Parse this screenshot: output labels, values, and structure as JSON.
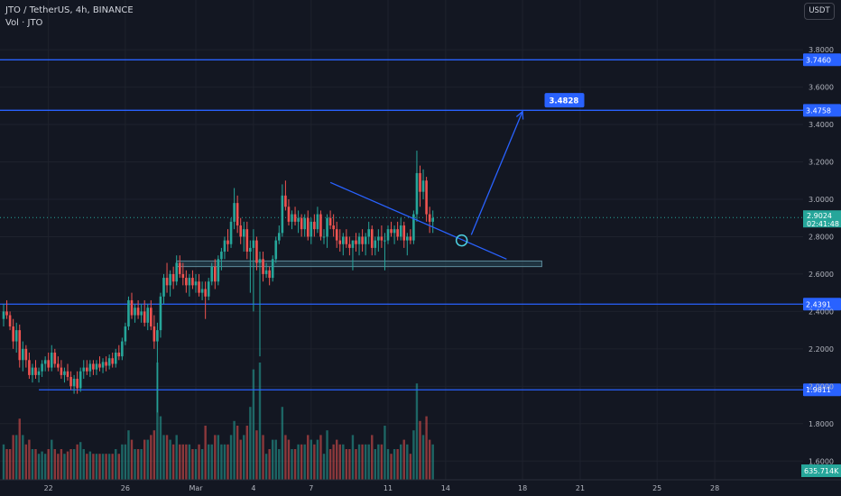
{
  "legend": {
    "symbol_line": "JTO / TetherUS, 4h, BINANCE",
    "volume_line": "Vol · JTO"
  },
  "currency_button": "USDT",
  "colors": {
    "background": "#131722",
    "up": "#26a69a",
    "down": "#ef5350",
    "level_line": "#2962ff",
    "trend_line": "#2962ff",
    "zone": "#2a4b5a",
    "last_price": "#26a69a",
    "grid": "#1e222d"
  },
  "chart_data": {
    "type": "candlestick",
    "title": "JTO / TetherUS, 4h, BINANCE",
    "y_axis": {
      "min": 1.5,
      "max": 3.95,
      "ticks": [
        "3.8000",
        "3.6000",
        "3.4000",
        "3.2000",
        "3.0000",
        "2.8000",
        "2.6000",
        "2.4000",
        "2.2000",
        "2.0000",
        "1.8000",
        "1.6000"
      ],
      "tick_values": [
        3.8,
        3.6,
        3.4,
        3.2,
        3.0,
        2.8,
        2.6,
        2.4,
        2.2,
        2.0,
        1.8,
        1.6
      ]
    },
    "x_axis": {
      "labels": [
        "22",
        "26",
        "Mar",
        "4",
        "7",
        "11",
        "14",
        "18",
        "21",
        "25",
        "28"
      ],
      "label_bar_index": [
        14,
        38,
        60,
        78,
        96,
        120,
        138,
        162,
        180,
        204,
        222
      ],
      "total_slots": 256
    },
    "price_levels": [
      {
        "value": 3.746,
        "label": "3.7460"
      },
      {
        "value": 3.4758,
        "label": "3.4758"
      },
      {
        "value": 2.4391,
        "label": "2.4391"
      },
      {
        "value": 1.9811,
        "label": "1.9811"
      }
    ],
    "last_price": {
      "value": 2.9024,
      "label": "2.9024",
      "countdown": "02:41:48"
    },
    "volume_readout": "635.714K",
    "support_zone": {
      "from_bar": 54,
      "to_bar": 168,
      "low": 2.64,
      "high": 2.67
    },
    "trend_line": {
      "from_bar": 102,
      "from_value": 3.09,
      "to_bar": 157,
      "to_value": 2.68
    },
    "projection_arrow": {
      "from_bar": 146,
      "from_value": 2.81,
      "to_bar": 162,
      "to_value": 3.47
    },
    "target_callout": {
      "label": "3.4828",
      "bar": 170,
      "value": 3.53
    },
    "breakout_marker": {
      "bar": 143,
      "value": 2.78
    },
    "candles_ohlc": [
      [
        2.36,
        2.44,
        2.32,
        2.4
      ],
      [
        2.4,
        2.46,
        2.36,
        2.38
      ],
      [
        2.38,
        2.4,
        2.3,
        2.32
      ],
      [
        2.32,
        2.36,
        2.2,
        2.24
      ],
      [
        2.24,
        2.34,
        2.18,
        2.3
      ],
      [
        2.3,
        2.33,
        2.1,
        2.14
      ],
      [
        2.14,
        2.24,
        2.08,
        2.2
      ],
      [
        2.2,
        2.22,
        2.1,
        2.14
      ],
      [
        2.14,
        2.18,
        2.04,
        2.06
      ],
      [
        2.06,
        2.12,
        2.02,
        2.1
      ],
      [
        2.1,
        2.14,
        2.04,
        2.06
      ],
      [
        2.06,
        2.1,
        2.02,
        2.08
      ],
      [
        2.08,
        2.14,
        2.05,
        2.12
      ],
      [
        2.12,
        2.16,
        2.08,
        2.14
      ],
      [
        2.14,
        2.18,
        2.08,
        2.1
      ],
      [
        2.1,
        2.22,
        2.08,
        2.18
      ],
      [
        2.18,
        2.2,
        2.1,
        2.12
      ],
      [
        2.12,
        2.16,
        2.08,
        2.1
      ],
      [
        2.1,
        2.14,
        2.04,
        2.06
      ],
      [
        2.06,
        2.1,
        2.02,
        2.08
      ],
      [
        2.08,
        2.12,
        2.03,
        2.05
      ],
      [
        2.05,
        2.08,
        1.98,
        2.0
      ],
      [
        2.0,
        2.06,
        1.96,
        2.04
      ],
      [
        2.04,
        2.08,
        1.96,
        1.99
      ],
      [
        1.99,
        2.1,
        1.97,
        2.08
      ],
      [
        2.08,
        2.14,
        2.04,
        2.1
      ],
      [
        2.1,
        2.14,
        2.06,
        2.08
      ],
      [
        2.08,
        2.14,
        2.05,
        2.12
      ],
      [
        2.12,
        2.14,
        2.06,
        2.09
      ],
      [
        2.09,
        2.14,
        2.06,
        2.12
      ],
      [
        2.12,
        2.16,
        2.08,
        2.1
      ],
      [
        2.1,
        2.15,
        2.07,
        2.13
      ],
      [
        2.13,
        2.16,
        2.08,
        2.11
      ],
      [
        2.11,
        2.17,
        2.09,
        2.15
      ],
      [
        2.15,
        2.18,
        2.1,
        2.12
      ],
      [
        2.12,
        2.2,
        2.1,
        2.18
      ],
      [
        2.18,
        2.22,
        2.14,
        2.16
      ],
      [
        2.16,
        2.26,
        2.14,
        2.24
      ],
      [
        2.24,
        2.34,
        2.22,
        2.32
      ],
      [
        2.32,
        2.48,
        2.3,
        2.46
      ],
      [
        2.46,
        2.5,
        2.36,
        2.38
      ],
      [
        2.38,
        2.44,
        2.34,
        2.42
      ],
      [
        2.42,
        2.46,
        2.36,
        2.38
      ],
      [
        2.38,
        2.44,
        2.34,
        2.4
      ],
      [
        2.4,
        2.46,
        2.32,
        2.34
      ],
      [
        2.34,
        2.44,
        2.3,
        2.42
      ],
      [
        2.42,
        2.46,
        2.3,
        2.32
      ],
      [
        2.32,
        2.38,
        2.2,
        2.24
      ],
      [
        2.24,
        2.34,
        1.86,
        2.3
      ],
      [
        2.3,
        2.5,
        2.26,
        2.48
      ],
      [
        2.48,
        2.6,
        2.44,
        2.58
      ],
      [
        2.58,
        2.66,
        2.5,
        2.54
      ],
      [
        2.54,
        2.62,
        2.48,
        2.6
      ],
      [
        2.6,
        2.64,
        2.52,
        2.56
      ],
      [
        2.56,
        2.7,
        2.54,
        2.66
      ],
      [
        2.66,
        2.7,
        2.58,
        2.6
      ],
      [
        2.6,
        2.66,
        2.54,
        2.58
      ],
      [
        2.58,
        2.62,
        2.5,
        2.54
      ],
      [
        2.54,
        2.6,
        2.48,
        2.58
      ],
      [
        2.58,
        2.62,
        2.52,
        2.54
      ],
      [
        2.54,
        2.6,
        2.5,
        2.56
      ],
      [
        2.56,
        2.6,
        2.48,
        2.5
      ],
      [
        2.5,
        2.56,
        2.46,
        2.52
      ],
      [
        2.52,
        2.56,
        2.36,
        2.48
      ],
      [
        2.48,
        2.58,
        2.46,
        2.56
      ],
      [
        2.56,
        2.66,
        2.54,
        2.64
      ],
      [
        2.64,
        2.68,
        2.52,
        2.56
      ],
      [
        2.56,
        2.7,
        2.54,
        2.68
      ],
      [
        2.68,
        2.74,
        2.62,
        2.72
      ],
      [
        2.72,
        2.8,
        2.68,
        2.78
      ],
      [
        2.78,
        2.84,
        2.72,
        2.76
      ],
      [
        2.76,
        2.9,
        2.74,
        2.88
      ],
      [
        2.88,
        3.06,
        2.84,
        2.98
      ],
      [
        2.98,
        3.02,
        2.82,
        2.86
      ],
      [
        2.86,
        2.9,
        2.76,
        2.8
      ],
      [
        2.8,
        2.88,
        2.72,
        2.84
      ],
      [
        2.84,
        2.88,
        2.68,
        2.72
      ],
      [
        2.72,
        2.78,
        2.5,
        2.74
      ],
      [
        2.74,
        2.84,
        2.4,
        2.78
      ],
      [
        2.78,
        2.8,
        2.62,
        2.66
      ],
      [
        2.66,
        2.72,
        2.16,
        2.68
      ],
      [
        2.68,
        2.72,
        2.56,
        2.6
      ],
      [
        2.6,
        2.66,
        2.58,
        2.62
      ],
      [
        2.62,
        2.64,
        2.54,
        2.58
      ],
      [
        2.58,
        2.7,
        2.56,
        2.68
      ],
      [
        2.68,
        2.8,
        2.66,
        2.78
      ],
      [
        2.78,
        2.86,
        2.76,
        2.82
      ],
      [
        2.82,
        3.08,
        2.8,
        3.02
      ],
      [
        3.02,
        3.1,
        2.94,
        2.96
      ],
      [
        2.96,
        3.0,
        2.86,
        2.88
      ],
      [
        2.88,
        2.94,
        2.84,
        2.92
      ],
      [
        2.92,
        2.96,
        2.86,
        2.88
      ],
      [
        2.88,
        2.94,
        2.82,
        2.9
      ],
      [
        2.9,
        2.92,
        2.8,
        2.84
      ],
      [
        2.84,
        2.92,
        2.8,
        2.9
      ],
      [
        2.9,
        2.94,
        2.78,
        2.8
      ],
      [
        2.8,
        2.9,
        2.76,
        2.88
      ],
      [
        2.88,
        2.92,
        2.8,
        2.84
      ],
      [
        2.84,
        2.96,
        2.82,
        2.92
      ],
      [
        2.92,
        2.94,
        2.78,
        2.8
      ],
      [
        2.8,
        2.84,
        2.76,
        2.8
      ],
      [
        2.8,
        2.92,
        2.74,
        2.9
      ],
      [
        2.9,
        2.94,
        2.84,
        2.86
      ],
      [
        2.86,
        2.92,
        2.8,
        2.84
      ],
      [
        2.84,
        2.88,
        2.74,
        2.78
      ],
      [
        2.78,
        2.84,
        2.72,
        2.76
      ],
      [
        2.76,
        2.82,
        2.7,
        2.8
      ],
      [
        2.8,
        2.84,
        2.74,
        2.76
      ],
      [
        2.76,
        2.8,
        2.7,
        2.74
      ],
      [
        2.74,
        2.78,
        2.62,
        2.78
      ],
      [
        2.78,
        2.82,
        2.72,
        2.76
      ],
      [
        2.76,
        2.82,
        2.7,
        2.8
      ],
      [
        2.8,
        2.84,
        2.72,
        2.76
      ],
      [
        2.76,
        2.82,
        2.7,
        2.8
      ],
      [
        2.8,
        2.88,
        2.76,
        2.84
      ],
      [
        2.84,
        2.86,
        2.7,
        2.74
      ],
      [
        2.74,
        2.8,
        2.7,
        2.78
      ],
      [
        2.78,
        2.84,
        2.72,
        2.8
      ],
      [
        2.8,
        2.86,
        2.74,
        2.78
      ],
      [
        2.78,
        2.82,
        2.62,
        2.78
      ],
      [
        2.78,
        2.86,
        2.76,
        2.84
      ],
      [
        2.84,
        2.88,
        2.8,
        2.82
      ],
      [
        2.82,
        2.86,
        2.76,
        2.84
      ],
      [
        2.84,
        2.88,
        2.78,
        2.8
      ],
      [
        2.8,
        2.9,
        2.78,
        2.86
      ],
      [
        2.86,
        2.88,
        2.74,
        2.78
      ],
      [
        2.78,
        2.82,
        2.7,
        2.8
      ],
      [
        2.8,
        2.84,
        2.76,
        2.78
      ],
      [
        2.78,
        2.94,
        2.76,
        2.92
      ],
      [
        2.92,
        3.26,
        2.88,
        3.14
      ],
      [
        3.14,
        3.18,
        2.96,
        3.04
      ],
      [
        3.04,
        3.16,
        3.0,
        3.1
      ],
      [
        3.1,
        3.12,
        2.88,
        2.92
      ],
      [
        2.92,
        2.96,
        2.82,
        2.88
      ],
      [
        2.88,
        2.94,
        2.82,
        2.9
      ]
    ]
  }
}
